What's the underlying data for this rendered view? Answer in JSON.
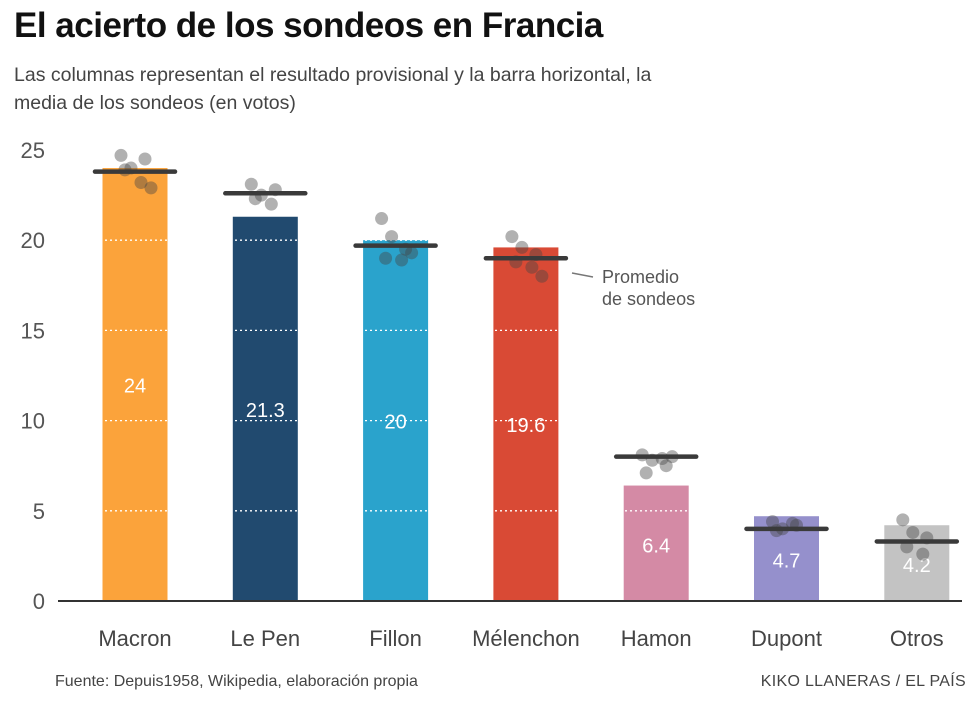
{
  "title": "El acierto de los sondeos en Francia",
  "subtitle": "Las columnas representan el resultado provisional y la barra horizontal, la media de los sondeos (en votos)",
  "source": "Fuente: Depuis1958, Wikipedia, elaboración propia",
  "credit": "KIKO LLANERAS / EL PAÍS",
  "chart_data": {
    "type": "bar",
    "title": "El acierto de los sondeos en Francia",
    "xlabel": "",
    "ylabel": "",
    "ylim": [
      0,
      25
    ],
    "yticks": [
      0,
      5,
      10,
      15,
      20,
      25
    ],
    "grid": true,
    "categories": [
      "Macron",
      "Le Pen",
      "Fillon",
      "Mélenchon",
      "Hamon",
      "Dupont",
      "Otros"
    ],
    "values": [
      24,
      21.3,
      20,
      19.6,
      6.4,
      4.7,
      4.2
    ],
    "value_labels": [
      "24",
      "21.3",
      "20",
      "19.6",
      "6.4",
      "4.7",
      "4.2"
    ],
    "colors": [
      "#fba33b",
      "#214a6f",
      "#2aa3cc",
      "#d94a35",
      "#d48aa5",
      "#9590cc",
      "#c3c3c3"
    ],
    "poll_average": [
      23.8,
      22.6,
      19.7,
      19.0,
      8.0,
      4.0,
      3.3
    ],
    "poll_points": [
      [
        24.7,
        24.0,
        24.5,
        23.9,
        23.2,
        22.9
      ],
      [
        23.1,
        22.5,
        22.8,
        22.3,
        22.0
      ],
      [
        21.2,
        20.2,
        19.5,
        19.0,
        18.9,
        19.3
      ],
      [
        20.2,
        19.6,
        19.2,
        18.8,
        18.5,
        18.0
      ],
      [
        8.1,
        7.8,
        7.5,
        7.1,
        7.9,
        8.0
      ],
      [
        4.4,
        4.0,
        4.2,
        3.9,
        4.3
      ],
      [
        4.5,
        3.8,
        3.5,
        3.0,
        2.6
      ]
    ],
    "annotation": [
      "Promedio",
      "de sondeos"
    ],
    "annotation_color": "#555555",
    "axis_color": "#333333"
  }
}
